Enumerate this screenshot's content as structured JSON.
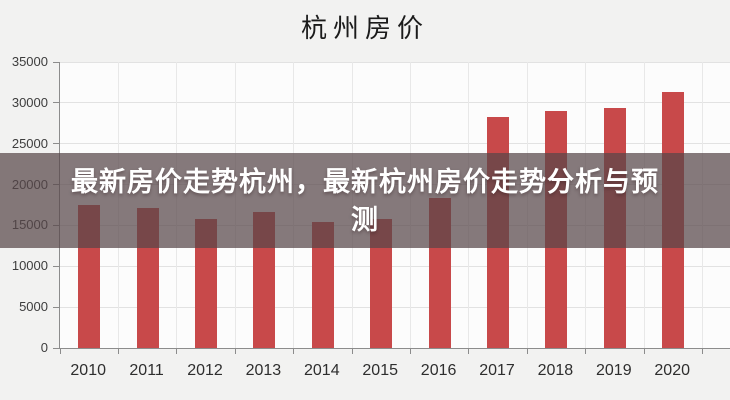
{
  "page": {
    "background_color": "#f2f2f1"
  },
  "chart_data": {
    "type": "bar",
    "title": "杭州房价",
    "categories": [
      "2010",
      "2011",
      "2012",
      "2013",
      "2014",
      "2015",
      "2016",
      "2017",
      "2018",
      "2019",
      "2020"
    ],
    "values": [
      17500,
      17100,
      15800,
      16600,
      15400,
      15800,
      18300,
      28300,
      29000,
      29400,
      31300
    ],
    "xlabel": "",
    "ylabel": "",
    "ylim": [
      0,
      35000
    ],
    "yticks": [
      0,
      5000,
      10000,
      15000,
      20000,
      25000,
      30000,
      35000
    ],
    "grid": "horizontal and vertical light gridlines",
    "legend_position": "none",
    "bar_color": "#c8494a",
    "plot_background": "#fcfcfc",
    "grid_color": "#e2e2e2",
    "axis_color": "#8c8c8c",
    "tick_label_color": "#3d3d3d"
  },
  "overlay": {
    "line1": "最新房价走势杭州，最新杭州房价走势分析与预",
    "line2": "测",
    "background": "rgba(88,70,74,0.72)",
    "text_color": "#ffffff"
  }
}
